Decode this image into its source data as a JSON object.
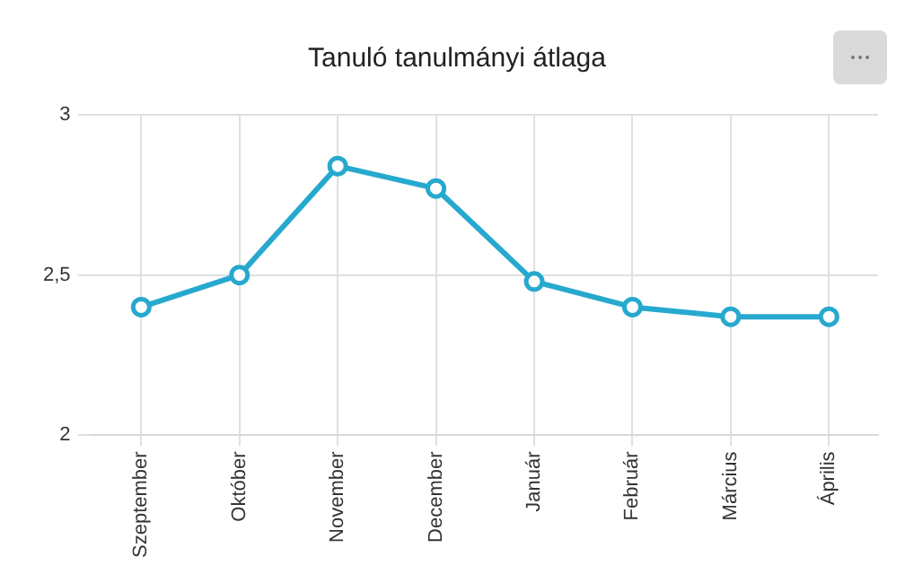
{
  "chart_data": {
    "type": "line",
    "title": "Tanuló tanulmányi átlaga",
    "categories": [
      "Szeptember",
      "Október",
      "November",
      "December",
      "Január",
      "Február",
      "Március",
      "Április"
    ],
    "series": [
      {
        "color": "#27a9cf",
        "values": [
          2.4,
          2.5,
          2.84,
          2.77,
          2.48,
          2.4,
          2.37,
          2.37
        ]
      }
    ],
    "ylim": [
      2,
      3
    ],
    "yticks": [
      2,
      {
        "value": 2.5,
        "label": "2,5"
      },
      3
    ],
    "grid": true,
    "legend": false,
    "marker": "circle",
    "line_style": "solid"
  }
}
